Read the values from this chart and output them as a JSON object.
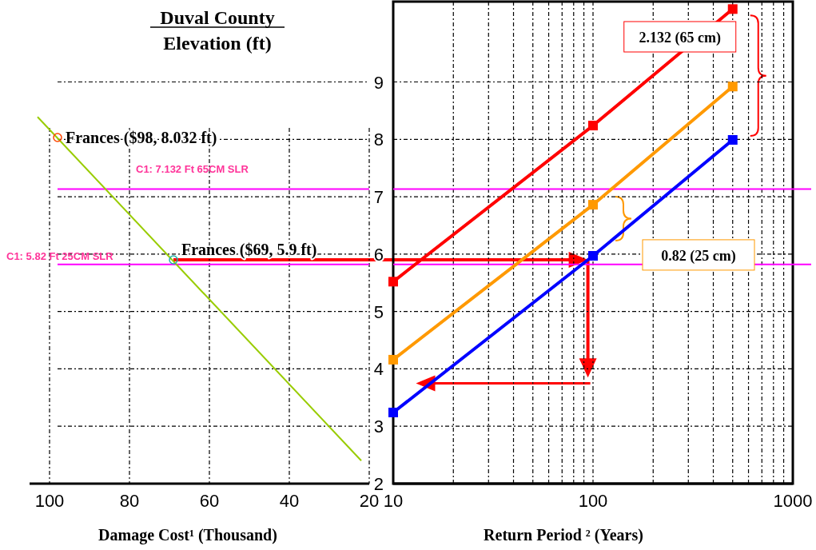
{
  "chart_data": [
    {
      "type": "line",
      "title": "Duval County",
      "xlabel": "Damage Cost¹ (Thousand)",
      "xlim": [
        105,
        20
      ],
      "xticks": [
        100,
        80,
        60,
        40,
        20
      ],
      "ylim": [
        2,
        10.4
      ],
      "yticks": [
        2,
        3,
        4,
        5,
        6,
        7,
        8,
        9
      ],
      "grid": true,
      "tick_labels": "x",
      "series": [
        {
          "x": [
            103,
            22
          ],
          "values": [
            8.39,
            2.4
          ],
          "color": "#99cc00",
          "marker": "none"
        },
        {
          "type": "scatter",
          "x": [
            98,
            69
          ],
          "values": [
            8.032,
            5.9
          ],
          "colors": [
            "#ff4500",
            "#20b2aa"
          ],
          "marker": "circle"
        }
      ],
      "ref_lines": [
        {
          "axis": "y",
          "value": 7.132,
          "label": "C1: 7.132 Ft 65CM SLR",
          "color": "#ff00ff"
        },
        {
          "axis": "y",
          "value": 5.82,
          "label": "C1: 5.82 Ft 25CM SLR",
          "color": "#ff00ff"
        }
      ],
      "annotations": [
        {
          "text": "Frances ($98, 8.032 ft)",
          "x": 98,
          "y": 8.032
        },
        {
          "text": "Frances ($69, 5.9 ft)",
          "x": 69,
          "y": 5.9
        }
      ]
    },
    {
      "type": "line",
      "ylabel": "Elevation (ft)",
      "xlabel": "Return Period ² (Years)",
      "log": "x",
      "xlim": [
        10,
        1000
      ],
      "xticks": [
        10,
        {
          "value": 20,
          "label": null
        },
        {
          "value": 30,
          "label": null
        },
        {
          "value": 40,
          "label": null
        },
        {
          "value": 50,
          "label": null
        },
        {
          "value": 60,
          "label": null
        },
        {
          "value": 70,
          "label": null
        },
        {
          "value": 80,
          "label": null
        },
        {
          "value": 90,
          "label": null
        },
        100,
        {
          "value": 200,
          "label": null
        },
        {
          "value": 300,
          "label": null
        },
        {
          "value": 400,
          "label": null
        },
        {
          "value": 500,
          "label": null
        },
        {
          "value": 600,
          "label": null
        },
        {
          "value": 700,
          "label": null
        },
        {
          "value": 800,
          "label": null
        },
        {
          "value": 900,
          "label": null
        },
        1000
      ],
      "ylim": [
        2,
        10.4
      ],
      "yticks": [
        2,
        3,
        4,
        5,
        6,
        7,
        8,
        9
      ],
      "grid": true,
      "marker": "square",
      "series": [
        {
          "x": [
            10,
            100,
            500
          ],
          "values": [
            5.52,
            8.24,
            10.27
          ],
          "color": "#ff0000"
        },
        {
          "x": [
            10,
            100,
            500
          ],
          "values": [
            4.16,
            6.86,
            8.92
          ],
          "color": "#ff9900"
        },
        {
          "x": [
            10,
            100,
            500
          ],
          "values": [
            3.24,
            5.97,
            7.99
          ],
          "color": "#0000ff"
        }
      ],
      "ref_lines": [
        {
          "axis": "y",
          "value": 7.132,
          "color": "#ff00ff"
        },
        {
          "axis": "y",
          "value": 5.82,
          "color": "#ff00ff"
        }
      ],
      "annotations": [
        "2.132 (65 cm)",
        "0.82 (25 cm)"
      ]
    }
  ]
}
